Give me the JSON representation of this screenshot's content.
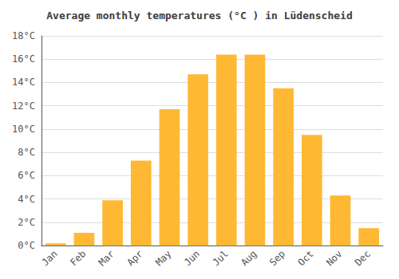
{
  "chart_data": {
    "type": "bar",
    "title": "Average monthly temperatures (°C ) in Lüdenscheid",
    "categories": [
      "Jan",
      "Feb",
      "Mar",
      "Apr",
      "May",
      "Jun",
      "Jul",
      "Aug",
      "Sep",
      "Oct",
      "Nov",
      "Dec"
    ],
    "values": [
      0.2,
      1.1,
      3.9,
      7.3,
      11.7,
      14.7,
      16.4,
      16.4,
      13.5,
      9.5,
      4.3,
      1.5
    ],
    "color": "#FFB833",
    "ylim": [
      0,
      18
    ],
    "yticks": [
      {
        "value": 0,
        "label": "0°C"
      },
      {
        "value": 2,
        "label": "2°C"
      },
      {
        "value": 4,
        "label": "4°C"
      },
      {
        "value": 6,
        "label": "6°C"
      },
      {
        "value": 8,
        "label": "8°C"
      },
      {
        "value": 10,
        "label": "10°C"
      },
      {
        "value": 12,
        "label": "12°C"
      },
      {
        "value": 14,
        "label": "14°C"
      },
      {
        "value": 16,
        "label": "16°C"
      },
      {
        "value": 18,
        "label": "18°C"
      }
    ],
    "grid": true
  }
}
